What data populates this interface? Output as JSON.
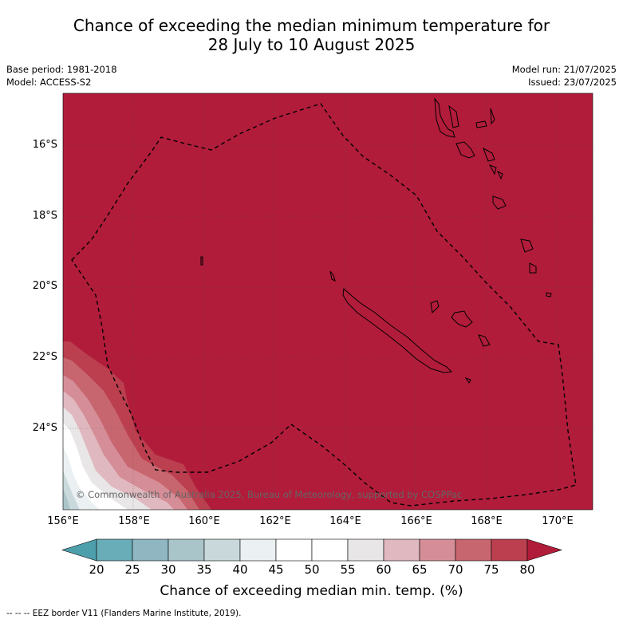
{
  "title_line1": "Chance of exceeding the median minimum temperature for",
  "title_line2": "28 July to 10 August 2025",
  "base_period": "Base period: 1981-2018",
  "model": "Model: ACCESS-S2",
  "model_run": "Model run: 21/07/2025",
  "issued": "Issued: 23/07/2025",
  "copyright": "© Commonwealth of Australia 2025, Bureau of Meteorology, supported by COSPPac",
  "footnote": "--  --  -- EEZ border V11 (Flanders Marine Institute, 2019).",
  "map": {
    "lon_range": [
      156,
      171
    ],
    "lat_range": [
      -26.0,
      -14.8
    ],
    "lat_ticks": [
      "16°S",
      "18°S",
      "20°S",
      "22°S",
      "24°S"
    ],
    "lon_ticks": [
      "156°E",
      "158°E",
      "160°E",
      "162°E",
      "164°E",
      "166°E",
      "168°E",
      "170°E"
    ],
    "dominant_fill": "#b11c3a",
    "grid": true
  },
  "colorbar": {
    "title": "Chance of exceeding median min. temp. (%)",
    "ticks": [
      "20",
      "25",
      "30",
      "35",
      "40",
      "45",
      "50",
      "55",
      "60",
      "65",
      "70",
      "75",
      "80"
    ],
    "colors": [
      "#69adb9",
      "#8fb6c1",
      "#aac5ca",
      "#c9d8db",
      "#ebf0f2",
      "#ffffff",
      "#ffffff",
      "#e8e6e7",
      "#e0b8bf",
      "#d58e98",
      "#c8666f",
      "#bb3f4f"
    ],
    "low_extend": "#4e9fac",
    "high_extend": "#b11c3a"
  }
}
